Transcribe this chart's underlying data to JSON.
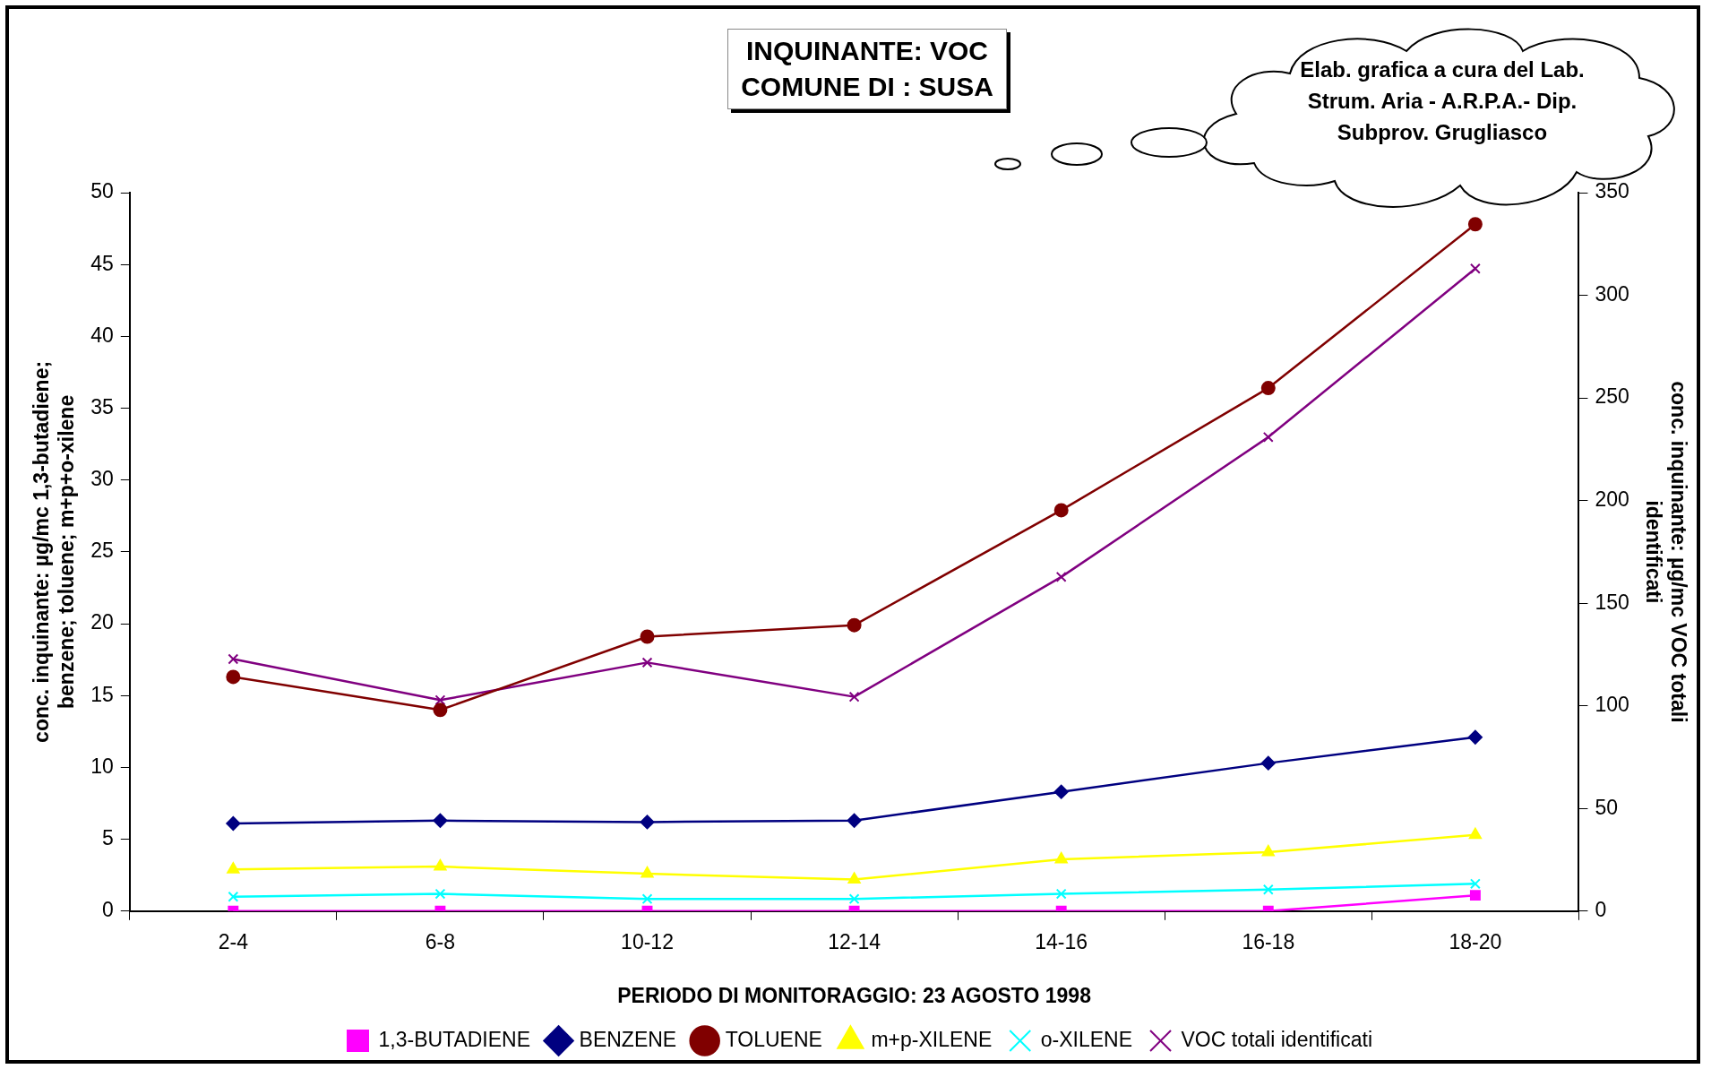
{
  "chart_data": {
    "type": "line",
    "title": "INQUINANTE: VOC\nCOMUNE DI : SUSA",
    "xlabel": "PERIODO DI MONITORAGGIO: 23 AGOSTO 1998",
    "ylabel": "conc. inquinante: µg/mc 1,3-butadiene; benzene; toluene; m+p+o-xilene",
    "y2label": "conc. inquinante: µg/mc VOC totali identificati",
    "annotations": [
      "Elab. grafica a cura del Lab. Strum. Aria - A.R.P.A.- Dip. Subprov. Grugliasco"
    ],
    "categories": [
      "2-4",
      "6-8",
      "10-12",
      "12-14",
      "14-16",
      "16-18",
      "18-20"
    ],
    "series": [
      {
        "name": "1,3-BUTADIENE",
        "color": "#ff00ff",
        "marker": "square",
        "values": [
          0,
          0,
          0,
          0,
          0,
          0,
          1.1
        ]
      },
      {
        "name": "BENZENE",
        "color": "#000080",
        "marker": "diamond",
        "values": [
          6.1,
          6.3,
          6.2,
          6.3,
          8.3,
          10.3,
          12.1
        ]
      },
      {
        "name": "TOLUENE",
        "color": "#800000",
        "marker": "circle",
        "values": [
          16.3,
          14.0,
          19.1,
          19.9,
          27.9,
          36.4,
          47.8
        ]
      },
      {
        "name": "m+p-XILENE",
        "color": "#ffff00",
        "marker": "triangle",
        "values": [
          2.9,
          3.1,
          2.6,
          2.2,
          3.6,
          4.1,
          5.3
        ]
      },
      {
        "name": "o-XILENE",
        "color": "#00ffff",
        "marker": "cross",
        "values": [
          1.0,
          1.2,
          0.85,
          0.85,
          1.2,
          1.5,
          1.9
        ]
      },
      {
        "name": "VOC totali identificati",
        "color": "#800080",
        "marker": "cross",
        "axis": "y2",
        "values": [
          122.8,
          102.8,
          121.1,
          104.4,
          162.8,
          230.9,
          313
        ]
      }
    ],
    "ylim": [
      0,
      50
    ],
    "yticks": [
      0,
      5,
      10,
      15,
      20,
      25,
      30,
      35,
      40,
      45,
      50
    ],
    "y2lim": [
      0,
      350
    ],
    "y2ticks": [
      0,
      50,
      100,
      150,
      200,
      250,
      300,
      350
    ],
    "grid": false,
    "legend": "bottom",
    "line_style": "solid"
  }
}
